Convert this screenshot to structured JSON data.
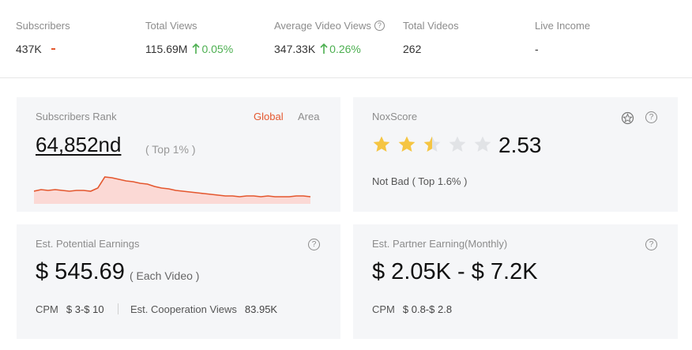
{
  "stats": {
    "subscribers": {
      "label": "Subscribers",
      "value": "437K"
    },
    "total_views": {
      "label": "Total Views",
      "value": "115.69M",
      "change": "0.05%"
    },
    "avg_video_views": {
      "label": "Average Video Views",
      "value": "347.33K",
      "change": "0.26%"
    },
    "total_videos": {
      "label": "Total Videos",
      "value": "262"
    },
    "live_income": {
      "label": "Live Income",
      "value": "-"
    }
  },
  "rank_card": {
    "title": "Subscribers Rank",
    "value": "64,852nd",
    "top": "( Top 1% )",
    "tab_global": "Global",
    "tab_area": "Area",
    "trend": [
      12,
      14,
      13,
      14,
      13,
      12,
      13,
      13,
      12,
      16,
      30,
      29,
      27,
      25,
      24,
      22,
      21,
      18,
      16,
      15,
      13,
      12,
      11,
      10,
      9,
      8,
      7,
      6,
      6,
      5,
      6,
      6,
      5,
      6,
      5,
      5,
      5,
      6,
      6,
      5
    ]
  },
  "nox_card": {
    "title": "NoxScore",
    "score": "2.53",
    "rating": 2.5,
    "max_rating": 5,
    "desc": "Not Bad ( Top 1.6% )"
  },
  "earnings_card": {
    "title": "Est. Potential Earnings",
    "value": "$ 545.69",
    "each": "( Each Video )",
    "cpm_label": "CPM",
    "cpm_value": "$ 3-$ 10",
    "coop_label": "Est. Cooperation Views",
    "coop_value": "83.95K"
  },
  "partner_card": {
    "title": "Est. Partner Earning(Monthly)",
    "value": "$ 2.05K - $ 7.2K",
    "cpm_label": "CPM",
    "cpm_value": "$ 0.8-$ 2.8"
  },
  "colors": {
    "accent_red": "#e4572e",
    "up_green": "#4caf50",
    "star_gold": "#f5c542",
    "star_gray": "#e1e3e6"
  }
}
